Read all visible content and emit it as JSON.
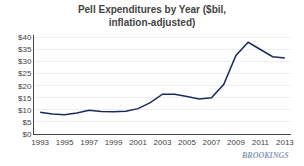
{
  "chart_data": {
    "type": "line",
    "title": "Pell Expenditures by Year ($bil,\ninflation-adjusted)",
    "x": [
      1993,
      1994,
      1995,
      1996,
      1997,
      1998,
      1999,
      2000,
      2001,
      2002,
      2003,
      2004,
      2005,
      2006,
      2007,
      2008,
      2009,
      2010,
      2011,
      2012,
      2013
    ],
    "values": [
      9.0,
      8.3,
      8.0,
      8.7,
      9.8,
      9.3,
      9.2,
      9.4,
      10.5,
      13.0,
      16.5,
      16.5,
      15.5,
      14.5,
      15.0,
      20.5,
      32.5,
      38.0,
      35.0,
      32.0,
      31.5
    ],
    "color": "#1a2a5e",
    "xlim": [
      1992.5,
      2013.5
    ],
    "xticks": [
      1993,
      1995,
      1997,
      1999,
      2001,
      2003,
      2005,
      2007,
      2009,
      2011,
      2013
    ],
    "ylim": [
      0,
      41
    ],
    "yticks": [
      {
        "value": 0,
        "label": "$0"
      },
      {
        "value": 5,
        "label": "$5"
      },
      {
        "value": 10,
        "label": "$10"
      },
      {
        "value": 15,
        "label": "$15"
      },
      {
        "value": 20,
        "label": "$20"
      },
      {
        "value": 25,
        "label": "$25"
      },
      {
        "value": 30,
        "label": "$30"
      },
      {
        "value": 35,
        "label": "$35"
      },
      {
        "value": 40,
        "label": "$40"
      }
    ],
    "grid": true,
    "annotations": [
      {
        "text": "BROOKINGS",
        "color": "#8a9ab5"
      }
    ]
  }
}
